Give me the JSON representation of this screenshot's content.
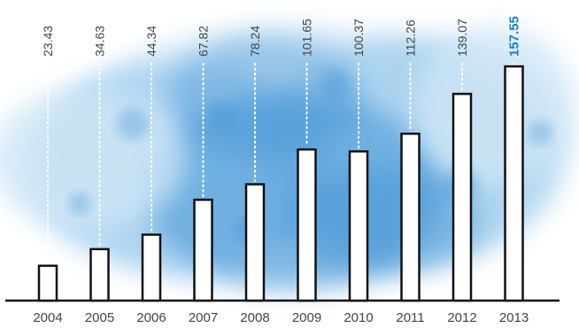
{
  "chart_data": {
    "type": "bar",
    "title": "",
    "xlabel": "",
    "ylabel": "",
    "categories": [
      "2004",
      "2005",
      "2006",
      "2007",
      "2008",
      "2009",
      "2010",
      "2011",
      "2012",
      "2013"
    ],
    "values": [
      23.43,
      34.63,
      44.34,
      67.82,
      78.24,
      101.65,
      100.37,
      112.26,
      139.07,
      157.55
    ],
    "value_labels": [
      "23.43",
      "34.63",
      "44.34",
      "67.82",
      "78.24",
      "101.65",
      "100.37",
      "112.26",
      "139.07",
      "157.55"
    ],
    "highlight_index": 9,
    "ylim": [
      0,
      160
    ],
    "grid": false,
    "legend": "none"
  },
  "colors": {
    "bar_fill": "#ffffff",
    "bar_stroke": "#111111",
    "label_text": "#444444",
    "highlight_text": "#1b7fc4",
    "dotted_leader": "#ffffff",
    "watercolor_light": "#cfe6f6",
    "watercolor_mid": "#8cc3ea",
    "watercolor_dark": "#3f93d6"
  }
}
